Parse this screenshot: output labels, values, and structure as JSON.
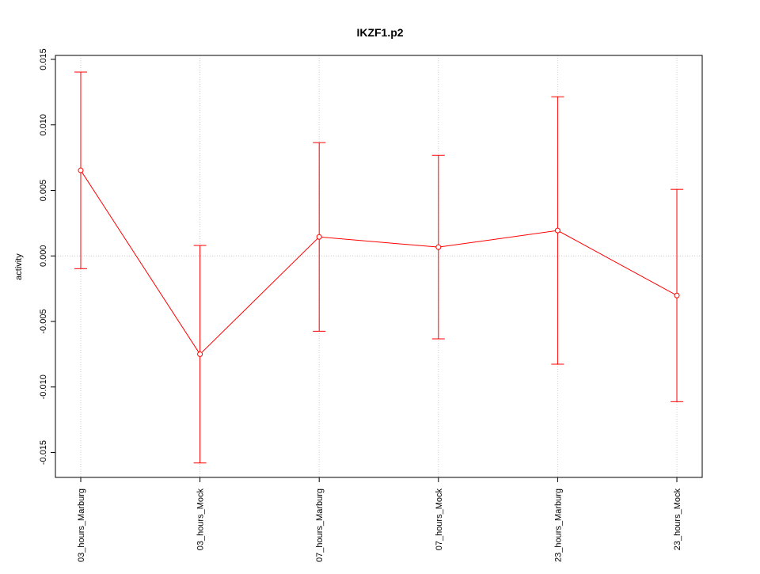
{
  "chart_data": {
    "type": "line",
    "title": "IKZF1.p2",
    "y_label": "activity",
    "categories": [
      "03_hours_Marburg",
      "03_hours_Mock",
      "07_hours_Marburg",
      "07_hours_Mock",
      "23_hours_Marburg",
      "23_hours_Mock"
    ],
    "series": [
      {
        "color": "#ff0000",
        "values": [
          0.00653,
          -0.0075,
          0.00145,
          0.00067,
          0.00194,
          -0.00302
        ],
        "errors": [
          0.0075,
          0.0083,
          0.0072,
          0.007,
          0.0102,
          0.0081
        ]
      }
    ],
    "ylim": [
      -0.0169,
      0.0153
    ],
    "yticks": [
      -0.015,
      {
        "value": -0.01,
        "label": "-0.010"
      },
      -0.005,
      {
        "value": 0,
        "label": "0.000"
      },
      0.005,
      {
        "value": 0.01,
        "label": "0.010"
      },
      0.015
    ],
    "grid": true,
    "reference_line": 0
  }
}
